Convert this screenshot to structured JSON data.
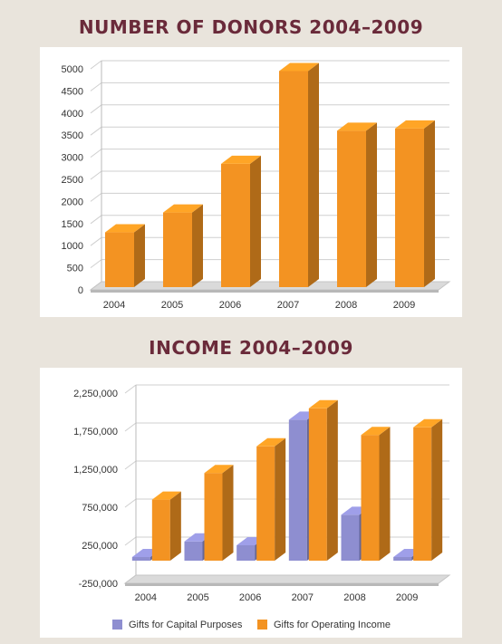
{
  "charts": [
    {
      "heading": "NUMBER OF DONORS 2004–2009"
    },
    {
      "heading": "INCOME 2004–2009"
    }
  ],
  "chart_data": [
    {
      "type": "bar",
      "title": "NUMBER OF DONORS 2004–2009",
      "categories": [
        "2004",
        "2005",
        "2006",
        "2007",
        "2008",
        "2009"
      ],
      "series": [
        {
          "values": [
            1300,
            1750,
            2850,
            4950,
            3600,
            3650
          ],
          "color": "#f39322"
        }
      ],
      "yticks": [
        "0",
        "500",
        "1000",
        "1500",
        "2000",
        "2500",
        "3000",
        "3500",
        "4000",
        "4500",
        "5000"
      ],
      "ylim": [
        0,
        5000
      ],
      "grid": true,
      "style": "3d"
    },
    {
      "type": "bar",
      "title": "INCOME 2004–2009",
      "categories": [
        "2004",
        "2005",
        "2006",
        "2007",
        "2008",
        "2009"
      ],
      "series": [
        {
          "name": "Gifts for Capital Purposes",
          "values": [
            -200000,
            300000,
            250000,
            1900000,
            650000,
            -150000
          ],
          "color": "#8e8ed0"
        },
        {
          "name": "Gifts for Operating Income",
          "values": [
            850000,
            1200000,
            1550000,
            2050000,
            1700000,
            1800000
          ],
          "color": "#f39322"
        }
      ],
      "yticks": [
        "-250,000",
        "250,000",
        "750,000",
        "1,250,000",
        "1,750,000",
        "2,250,000"
      ],
      "ylim": [
        -250000,
        2250000
      ],
      "grid": true,
      "legend": "bottom",
      "style": "3d"
    }
  ]
}
